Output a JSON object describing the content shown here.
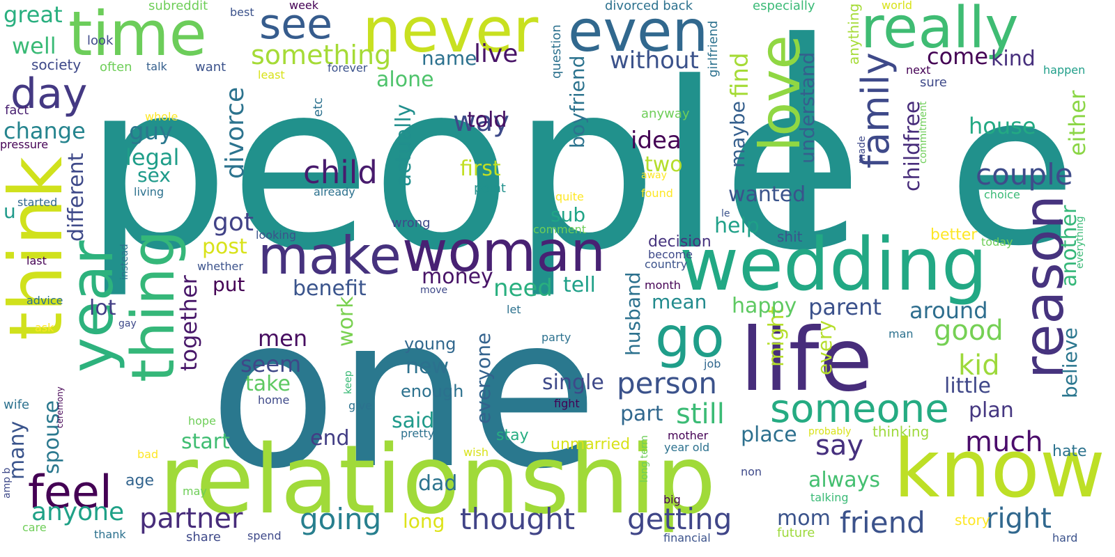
{
  "palette": [
    "#440154",
    "#482878",
    "#3e4989",
    "#31688e",
    "#26828e",
    "#1f9e89",
    "#35b779",
    "#6ece58",
    "#b5de2b",
    "#fde725"
  ],
  "words": [
    {
      "text": "people",
      "c": "#21918c"
    },
    {
      "text": "one",
      "c": "#2a788e"
    },
    {
      "text": "l",
      "c": "#21918c"
    },
    {
      "text": "e",
      "c": "#21918c"
    },
    {
      "text": "relationship",
      "c": "#a0da39"
    },
    {
      "text": "life",
      "c": "#472d7b"
    },
    {
      "text": "wedding",
      "c": "#22a884"
    },
    {
      "text": "know",
      "c": "#bddf26"
    },
    {
      "text": "woman",
      "c": "#482173"
    },
    {
      "text": "make",
      "c": "#46327e"
    },
    {
      "text": "never",
      "c": "#c8e020"
    },
    {
      "text": "time",
      "c": "#6ccd5a"
    },
    {
      "text": "even",
      "c": "#31688e"
    },
    {
      "text": "really",
      "c": "#3fbc73"
    },
    {
      "text": "think",
      "c": "#d0e11c"
    },
    {
      "text": "year",
      "c": "#2db27d"
    },
    {
      "text": "thing",
      "c": "#35b779"
    },
    {
      "text": "reason",
      "c": "#46337e"
    },
    {
      "text": "love",
      "c": "#90d743"
    },
    {
      "text": "go",
      "c": "#1f9e89"
    },
    {
      "text": "someone",
      "c": "#25ab82"
    },
    {
      "text": "family",
      "c": "#3e4989"
    },
    {
      "text": "feel",
      "c": "#440154"
    },
    {
      "text": "day",
      "c": "#443983"
    },
    {
      "text": "see",
      "c": "#365c8d"
    },
    {
      "text": "something",
      "c": "#a5db36"
    },
    {
      "text": "child",
      "c": "#481b6d"
    },
    {
      "text": "partner",
      "c": "#472c7a"
    },
    {
      "text": "thought",
      "c": "#414487"
    },
    {
      "text": "friend",
      "c": "#3b528b"
    },
    {
      "text": "getting",
      "c": "#404688"
    },
    {
      "text": "person",
      "c": "#3b528b"
    },
    {
      "text": "couple",
      "c": "#3e4c8a"
    },
    {
      "text": "going",
      "c": "#277f8e"
    },
    {
      "text": "much",
      "c": "#4b0c6b"
    },
    {
      "text": "say",
      "c": "#46307e"
    },
    {
      "text": "right",
      "c": "#31688e"
    },
    {
      "text": "good",
      "c": "#75d054"
    },
    {
      "text": "kid",
      "c": "#9dd93b"
    },
    {
      "text": "still",
      "c": "#3bbb75"
    },
    {
      "text": "anyone",
      "c": "#1fa187"
    },
    {
      "text": "way",
      "c": "#3e4a89"
    },
    {
      "text": "divorce",
      "c": "#2c738e"
    },
    {
      "text": "live",
      "c": "#481467"
    },
    {
      "text": "without",
      "c": "#3b528b"
    },
    {
      "text": "house",
      "c": "#23a983"
    },
    {
      "text": "childfree",
      "c": "#472c7a"
    },
    {
      "text": "understand",
      "c": "#355f8d"
    },
    {
      "text": "find",
      "c": "#a5db36"
    },
    {
      "text": "maybe",
      "c": "#355f8d"
    },
    {
      "text": "boyfriend",
      "c": "#2c738e"
    },
    {
      "text": "actually",
      "c": "#218f8d"
    },
    {
      "text": "together",
      "c": "#481769"
    },
    {
      "text": "another",
      "c": "#35b779"
    },
    {
      "text": "either",
      "c": "#8bd646"
    },
    {
      "text": "believe",
      "c": "#2a768e"
    },
    {
      "text": "husband",
      "c": "#2c718e"
    },
    {
      "text": "everyone",
      "c": "#33628d"
    },
    {
      "text": "might",
      "c": "#b5de2b"
    },
    {
      "text": "every",
      "c": "#b5de2b"
    },
    {
      "text": "different",
      "c": "#3e4989"
    },
    {
      "text": "spouse",
      "c": "#2a788e"
    },
    {
      "text": "many",
      "c": "#3a548c"
    },
    {
      "text": "work",
      "c": "#7ad151"
    },
    {
      "text": "come",
      "c": "#440154"
    },
    {
      "text": "kind",
      "c": "#472f7d"
    },
    {
      "text": "name",
      "c": "#2c718e"
    },
    {
      "text": "alone",
      "c": "#4ec36b"
    },
    {
      "text": "told",
      "c": "#471164"
    },
    {
      "text": "idea",
      "c": "#440154"
    },
    {
      "text": "two",
      "c": "#b5de2b"
    },
    {
      "text": "first",
      "c": "#c2df23"
    },
    {
      "text": "wanted",
      "c": "#3a538b"
    },
    {
      "text": "help",
      "c": "#1fa088"
    },
    {
      "text": "sub",
      "c": "#20a486"
    },
    {
      "text": "got",
      "c": "#414287"
    },
    {
      "text": "post",
      "c": "#d8e219"
    },
    {
      "text": "put",
      "c": "#440154"
    },
    {
      "text": "benefit",
      "c": "#3a548c"
    },
    {
      "text": "money",
      "c": "#481467"
    },
    {
      "text": "need",
      "c": "#29af7f"
    },
    {
      "text": "tell",
      "c": "#1fa088"
    },
    {
      "text": "mean",
      "c": "#228b8d"
    },
    {
      "text": "happy",
      "c": "#5ec962"
    },
    {
      "text": "parent",
      "c": "#3b518b"
    },
    {
      "text": "around",
      "c": "#2e6e8e"
    },
    {
      "text": "guy",
      "c": "#2a788e"
    },
    {
      "text": "legal",
      "c": "#1f9e89"
    },
    {
      "text": "sex",
      "c": "#1f9a8a"
    },
    {
      "text": "change",
      "c": "#25848e"
    },
    {
      "text": "lot",
      "c": "#433e85"
    },
    {
      "text": "men",
      "c": "#470d60"
    },
    {
      "text": "seem",
      "c": "#3f4788"
    },
    {
      "text": "take",
      "c": "#5ec962"
    },
    {
      "text": "single",
      "c": "#3e4989"
    },
    {
      "text": "little",
      "c": "#3f4788"
    },
    {
      "text": "plan",
      "c": "#453781"
    },
    {
      "text": "part",
      "c": "#31688e"
    },
    {
      "text": "place",
      "c": "#2d708e"
    },
    {
      "text": "always",
      "c": "#44bf70"
    },
    {
      "text": "mom",
      "c": "#3a538b"
    },
    {
      "text": "new",
      "c": "#2c718e"
    },
    {
      "text": "young",
      "c": "#31688e"
    },
    {
      "text": "enough",
      "c": "#2c718e"
    },
    {
      "text": "said",
      "c": "#1f9a8a"
    },
    {
      "text": "end",
      "c": "#433e85"
    },
    {
      "text": "start",
      "c": "#40bd72"
    },
    {
      "text": "dad",
      "c": "#2c738e"
    },
    {
      "text": "long",
      "c": "#dde318"
    },
    {
      "text": "decision",
      "c": "#46337e"
    },
    {
      "text": "great",
      "c": "#29af7f"
    },
    {
      "text": "well",
      "c": "#3aba76"
    },
    {
      "text": "u",
      "c": "#1f9a8a"
    },
    {
      "text": "age",
      "c": "#32648e"
    },
    {
      "text": "hate",
      "c": "#2c738e"
    },
    {
      "text": "unmarried",
      "c": "#d8e219"
    },
    {
      "text": "stay",
      "c": "#27ad81"
    },
    {
      "text": "better",
      "c": "#fde725"
    },
    {
      "text": "future",
      "c": "#9dd93b"
    },
    {
      "text": "shit",
      "c": "#3a548c"
    },
    {
      "text": "story",
      "c": "#fde725"
    },
    {
      "text": "thinking",
      "c": "#9dd93b"
    },
    {
      "text": "fact",
      "c": "#481f70"
    },
    {
      "text": "pressure",
      "c": "#440154"
    },
    {
      "text": "society",
      "c": "#3e4989"
    },
    {
      "text": "look",
      "c": "#3e4989"
    },
    {
      "text": "often",
      "c": "#6ece58"
    },
    {
      "text": "talk",
      "c": "#355f8d"
    },
    {
      "text": "want",
      "c": "#3b528b"
    },
    {
      "text": "least",
      "c": "#d8e219"
    },
    {
      "text": "forever",
      "c": "#3b528b"
    },
    {
      "text": "week",
      "c": "#440154"
    },
    {
      "text": "subreddit",
      "c": "#6ece58"
    },
    {
      "text": "best",
      "c": "#3b528b"
    },
    {
      "text": "divorced back",
      "c": "#2c718e"
    },
    {
      "text": "especially",
      "c": "#3aba76"
    },
    {
      "text": "girlfriend",
      "c": "#2c718e"
    },
    {
      "text": "anything",
      "c": "#a5db36"
    },
    {
      "text": "world",
      "c": "#d8e219"
    },
    {
      "text": "next",
      "c": "#440154"
    },
    {
      "text": "happen",
      "c": "#1f9e89"
    },
    {
      "text": "sure",
      "c": "#3e4989"
    },
    {
      "text": "question",
      "c": "#2c718e"
    },
    {
      "text": "whole",
      "c": "#fde725"
    },
    {
      "text": "anyway",
      "c": "#6ece58"
    },
    {
      "text": "etc",
      "c": "#2c718e"
    },
    {
      "text": "living",
      "c": "#2c718e"
    },
    {
      "text": "already",
      "c": "#2c718e"
    },
    {
      "text": "point",
      "c": "#21918c"
    },
    {
      "text": "away",
      "c": "#fde725"
    },
    {
      "text": "found",
      "c": "#fde725"
    },
    {
      "text": "quite",
      "c": "#fde725"
    },
    {
      "text": "choice",
      "c": "#3aba76"
    },
    {
      "text": "commitment",
      "c": "#6ece58"
    },
    {
      "text": "made",
      "c": "#3e4989"
    },
    {
      "text": "started",
      "c": "#31688e"
    },
    {
      "text": "wrong",
      "c": "#3e4989"
    },
    {
      "text": "comment",
      "c": "#6ece58"
    },
    {
      "text": "looking",
      "c": "#3b528b"
    },
    {
      "text": "today",
      "c": "#6ece58"
    },
    {
      "text": "everything",
      "c": "#3aba76"
    },
    {
      "text": "le",
      "c": "#3b528b"
    },
    {
      "text": "become",
      "c": "#3e4989"
    },
    {
      "text": "country",
      "c": "#3b528b"
    },
    {
      "text": "month",
      "c": "#440154"
    },
    {
      "text": "whether",
      "c": "#3b528b"
    },
    {
      "text": "last",
      "c": "#440154"
    },
    {
      "text": "instead",
      "c": "#2c718e"
    },
    {
      "text": "move",
      "c": "#3e4989"
    },
    {
      "text": "let",
      "c": "#2c718e"
    },
    {
      "text": "advice",
      "c": "#2c718e"
    },
    {
      "text": "ask",
      "c": "#fde725"
    },
    {
      "text": "gay",
      "c": "#3e4989"
    },
    {
      "text": "party",
      "c": "#2c718e"
    },
    {
      "text": "man",
      "c": "#2c718e"
    },
    {
      "text": "job",
      "c": "#31688e"
    },
    {
      "text": "fight",
      "c": "#440154"
    },
    {
      "text": "keep",
      "c": "#3aba76"
    },
    {
      "text": "give",
      "c": "#2c718e"
    },
    {
      "text": "home",
      "c": "#3e4989"
    },
    {
      "text": "hope",
      "c": "#6ece58"
    },
    {
      "text": "pretty",
      "c": "#2c718e"
    },
    {
      "text": "wish",
      "c": "#d8e219"
    },
    {
      "text": "wife",
      "c": "#2c718e"
    },
    {
      "text": "ceremony",
      "c": "#440154"
    },
    {
      "text": "bad",
      "c": "#fde725"
    },
    {
      "text": "amp b",
      "c": "#3e4989"
    },
    {
      "text": "care",
      "c": "#6ece58"
    },
    {
      "text": "thank",
      "c": "#2c718e"
    },
    {
      "text": "may",
      "c": "#6ece58"
    },
    {
      "text": "share",
      "c": "#3e4989"
    },
    {
      "text": "spend",
      "c": "#3e4989"
    },
    {
      "text": "financial",
      "c": "#3b528b"
    },
    {
      "text": "mother",
      "c": "#440154"
    },
    {
      "text": "year old",
      "c": "#2c718e"
    },
    {
      "text": "long term",
      "c": "#6ece58"
    },
    {
      "text": "non",
      "c": "#3e4989"
    },
    {
      "text": "big",
      "c": "#440154"
    },
    {
      "text": "talking",
      "c": "#3aba76"
    },
    {
      "text": "probably",
      "c": "#d8e219"
    },
    {
      "text": "hard",
      "c": "#3b528b"
    }
  ]
}
